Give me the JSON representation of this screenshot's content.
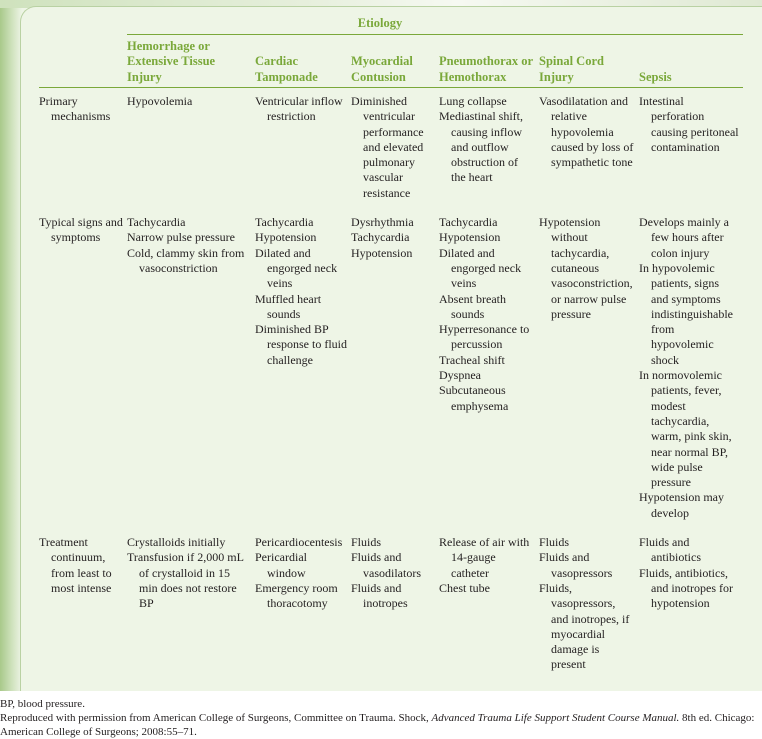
{
  "table": {
    "group_header": "Etiology",
    "columns": [
      "Hemorrhage or Extensive Tissue Injury",
      "Cardiac Tamponade",
      "Myocardial Contusion",
      "Pneumothorax or Hemothorax",
      "Spinal Cord Injury",
      "Sepsis"
    ],
    "rows": [
      {
        "label": "Primary mechanisms",
        "cells": [
          [
            "Hypovolemia"
          ],
          [
            "Ventricular inflow restriction"
          ],
          [
            "Diminished ventricular performance and elevated pulmonary vascular resistance"
          ],
          [
            "Lung collapse",
            "Mediastinal shift, causing inflow and outflow obstruction of the heart"
          ],
          [
            "Vasodilatation and relative hypovolemia caused by loss of sympathetic tone"
          ],
          [
            "Intestinal perforation causing peritoneal contamination"
          ]
        ]
      },
      {
        "label": "Typical signs and symptoms",
        "cells": [
          [
            "Tachycardia",
            "Narrow pulse pressure",
            "Cold, clammy skin from vasoconstriction"
          ],
          [
            "Tachycardia",
            "Hypotension",
            "Dilated and engorged neck veins",
            "Muffled heart sounds",
            "Diminished BP response to fluid challenge"
          ],
          [
            "Dysrhythmia",
            "Tachycardia",
            "Hypotension"
          ],
          [
            "Tachycardia",
            "Hypotension",
            "Dilated and engorged neck veins",
            "Absent breath sounds",
            "Hyperresonance to percussion",
            "Tracheal shift",
            "Dyspnea",
            "Subcutaneous emphysema"
          ],
          [
            "Hypotension without tachycardia, cutaneous vasoconstriction, or narrow pulse pressure"
          ],
          [
            "Develops mainly a few hours after colon injury",
            "In hypovolemic patients, signs and symptoms indistinguishable from hypovolemic shock",
            "In normovolemic patients, fever, modest tachycardia, warm, pink skin, near normal BP, wide pulse pressure",
            "Hypotension may develop"
          ]
        ]
      },
      {
        "label": "Treatment continuum, from least to most intense",
        "cells": [
          [
            "Crystalloids initially",
            "Transfusion if 2,000 mL of crystalloid in 15 min does not restore BP"
          ],
          [
            "Pericardiocentesis",
            "Pericardial window",
            "Emergency room thoracotomy"
          ],
          [
            "Fluids",
            "Fluids and vasodilators",
            "Fluids and inotropes"
          ],
          [
            "Release of air with 14-gauge catheter",
            "Chest tube"
          ],
          [
            "Fluids",
            "Fluids and vasopressors",
            "Fluids, vasopressors, and inotropes, if myocardial damage is present"
          ],
          [
            "Fluids and antibiotics",
            "Fluids, antibiotics, and inotropes for hypotension"
          ]
        ]
      }
    ]
  },
  "footnotes": {
    "abbrev": "BP, blood pressure.",
    "source_pre": "Reproduced with permission from American College of Surgeons, Committee on Trauma. Shock, ",
    "source_title": "Advanced Trauma Life Support Student Course Manual.",
    "source_post": " 8th ed. Chicago: American College of Surgeons; 2008:55–71."
  },
  "colors": {
    "header_green": "#7aa83a",
    "panel_bg": "#eef5e6"
  }
}
